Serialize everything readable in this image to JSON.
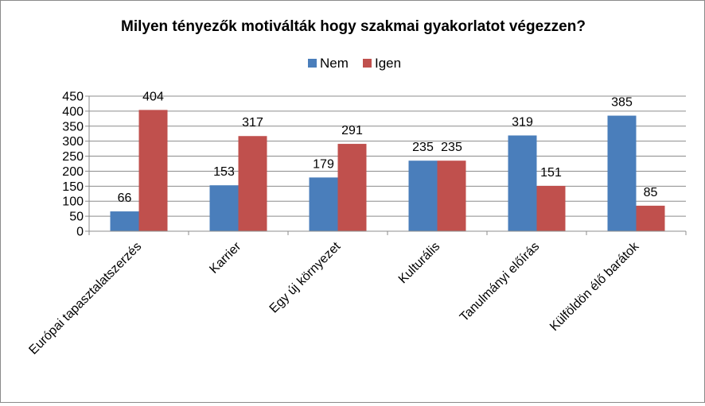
{
  "chart_data": {
    "type": "bar",
    "title": "Milyen tényezők motiválták hogy szakmai gyakorlatot végezzen?",
    "xlabel": "",
    "ylabel": "",
    "categories": [
      "Európai tapasztalatszerzés",
      "Karrier",
      "Egy új környezet",
      "Kulturális",
      "Tanulmányi előírás",
      "Külföldön élő barátok"
    ],
    "series": [
      {
        "name": "Nem",
        "color": "#4a7ebb",
        "values": [
          66,
          153,
          179,
          235,
          319,
          385
        ]
      },
      {
        "name": "Igen",
        "color": "#c0504d",
        "values": [
          404,
          317,
          291,
          235,
          151,
          85
        ]
      }
    ],
    "ylim": [
      0,
      450
    ],
    "yticks": [
      0,
      50,
      100,
      150,
      200,
      250,
      300,
      350,
      400,
      450
    ],
    "grid": true,
    "legend_position": "top",
    "data_labels": true
  }
}
